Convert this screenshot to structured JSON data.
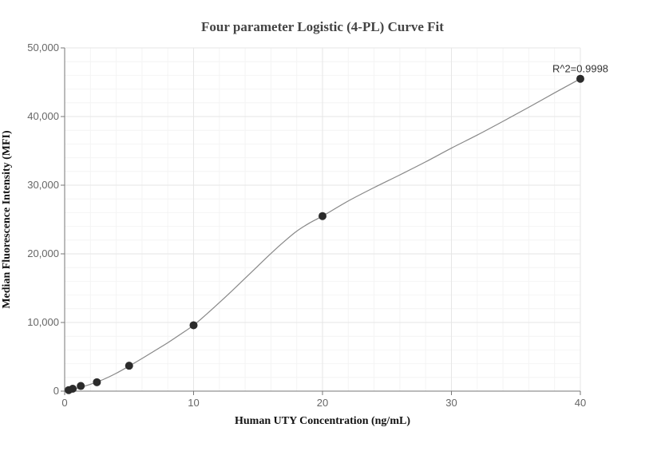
{
  "chart_data": {
    "type": "scatter",
    "title": "Four parameter Logistic (4-PL) Curve Fit",
    "xlabel": "Human UTY Concentration (ng/mL)",
    "ylabel": "Median Fluorescence Intensity (MFI)",
    "xlim": [
      0,
      40
    ],
    "ylim": [
      0,
      50000
    ],
    "xticks": [
      0,
      10,
      20,
      30,
      40
    ],
    "yticks": [
      0,
      10000,
      20000,
      30000,
      40000,
      50000
    ],
    "xtick_labels": [
      "0",
      "10",
      "20",
      "30",
      "40"
    ],
    "ytick_labels": [
      "0",
      "10,000",
      "20,000",
      "30,000",
      "40,000",
      "50,000"
    ],
    "grid": true,
    "series": [
      {
        "points": [
          {
            "x": 0.3125,
            "y": 150
          },
          {
            "x": 0.625,
            "y": 350
          },
          {
            "x": 1.25,
            "y": 750
          },
          {
            "x": 2.5,
            "y": 1300
          },
          {
            "x": 5,
            "y": 3700
          },
          {
            "x": 10,
            "y": 9600
          },
          {
            "x": 20,
            "y": 25500
          },
          {
            "x": 40,
            "y": 45500
          }
        ]
      }
    ],
    "fit_curve": {
      "model": "4PL",
      "x": [
        0,
        1,
        2,
        3,
        4,
        5,
        6,
        7,
        8,
        9,
        10,
        11,
        12,
        13,
        14,
        15,
        16,
        17,
        18,
        19,
        20,
        22,
        24,
        26,
        28,
        30,
        32,
        34,
        36,
        38,
        40
      ],
      "y": [
        0,
        450,
        1000,
        1700,
        2600,
        3650,
        4750,
        5900,
        7050,
        8300,
        9600,
        11200,
        12900,
        14650,
        16450,
        18250,
        20050,
        21750,
        23300,
        24500,
        25500,
        27700,
        29650,
        31500,
        33400,
        35400,
        37300,
        39300,
        41350,
        43450,
        45500
      ]
    },
    "annotation": {
      "text": "R^2=0.9998",
      "x": 40,
      "y": 45500
    }
  }
}
